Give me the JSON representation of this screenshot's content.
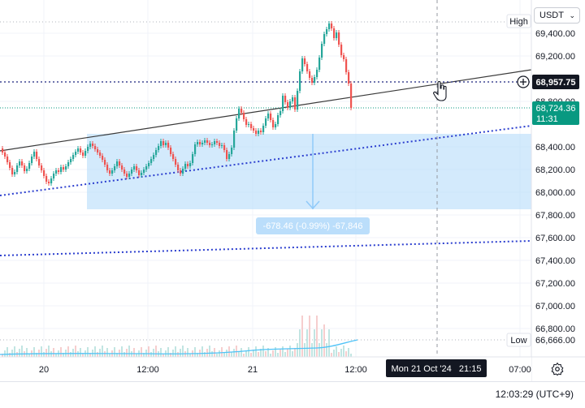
{
  "currency_selector": {
    "value": "USDT"
  },
  "price_axis": {
    "ticks": [
      "69,400.00",
      "69,200.00",
      "68,800.00",
      "68,400.00",
      "68,200.00",
      "68,000.00",
      "67,800.00",
      "67,600.00",
      "67,400.00",
      "67,200.00",
      "67,000.00",
      "66,800.00"
    ],
    "high_label": "High",
    "low_label": "Low",
    "low_value": "66,666.00",
    "crosshair_price": "68,957.75",
    "last_price": "68,724.36",
    "countdown": "11:31"
  },
  "time_axis": {
    "ticks": [
      "20",
      "12:00",
      "21",
      "12:00",
      "07:00"
    ],
    "crosshair_time": "Mon 21 Oct '24   21:15"
  },
  "measure_label": "-678.46 (-0.99%) -67,846",
  "status_bar": {
    "clock": "12:03:29 (UTC+9)"
  },
  "colors": {
    "up": "#26a69a",
    "down": "#ef5350",
    "accent": "#2962ff",
    "tag_green": "#089981",
    "measure_fill": "#bbdefb",
    "volume_ma": "#4fc3f7",
    "trend_line": "#3a3a3a"
  },
  "icons": {
    "settings": "gear-icon",
    "crosshair": "plus-circle-icon",
    "cursor": "hand-cursor-icon",
    "currency": "chevron-down-icon"
  }
}
